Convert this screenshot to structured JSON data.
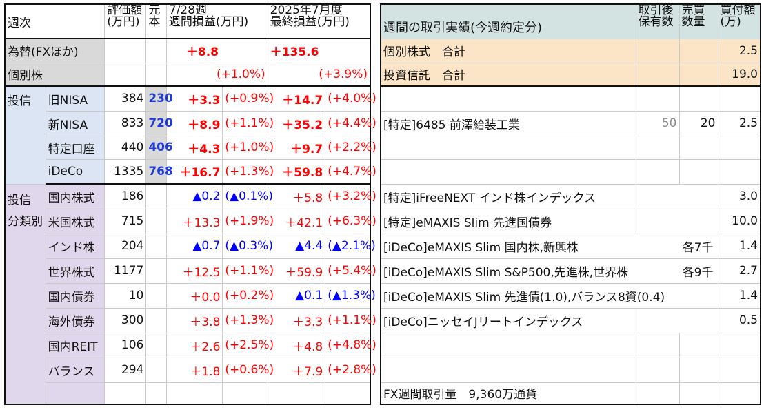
{
  "left": {
    "title": "週次",
    "headers": {
      "valuation_l1": "評価額",
      "valuation_l2": "(万円)",
      "principal_l1": "元",
      "principal_l2": "本",
      "weekly_l1": "7/28週",
      "weekly_l2": "週間損益(万円)",
      "final_l1": "2025年7月度",
      "final_l2": "最終損益(万円)"
    },
    "fx": {
      "label": "為替(FXほか)",
      "weekly": "＋8.8",
      "final": "＋135.6"
    },
    "stock": {
      "label": "個別株",
      "weekly": "(+1.0%)",
      "final": "(+3.9%)"
    },
    "trust": {
      "group_label": "投信",
      "rows": [
        {
          "label": "旧NISA",
          "value": "384",
          "principal": "230",
          "weekly": "＋3.3",
          "weekly_pct": "(+0.9%)",
          "final": "＋14.7",
          "final_pct": "(+4.0%)"
        },
        {
          "label": "新NISA",
          "value": "833",
          "principal": "720",
          "weekly": "＋8.9",
          "weekly_pct": "(+1.1%)",
          "final": "＋35.2",
          "final_pct": "(+4.4%)"
        },
        {
          "label": "特定口座",
          "value": "440",
          "principal": "406",
          "weekly": "＋4.3",
          "weekly_pct": "(+1.0%)",
          "final": "＋9.7",
          "final_pct": "(+2.2%)"
        },
        {
          "label": "iDeCo",
          "value": "1335",
          "principal": "768",
          "weekly": "＋16.7",
          "weekly_pct": "(+1.3%)",
          "final": "＋59.8",
          "final_pct": "(+4.7%)"
        }
      ]
    },
    "category": {
      "group_label_1": "投信",
      "group_label_2": "分類別",
      "rows": [
        {
          "label": "国内株式",
          "value": "186",
          "weekly": "▲0.2",
          "weekly_pct": "(▲0.1%)",
          "weekly_color": "#0000ff",
          "final": "＋5.8",
          "final_pct": "(+3.2%)",
          "final_color": "#ff0000"
        },
        {
          "label": "米国株式",
          "value": "715",
          "weekly": "＋13.3",
          "weekly_pct": "(+1.9%)",
          "weekly_color": "#ff0000",
          "final": "＋42.1",
          "final_pct": "(+6.3%)",
          "final_color": "#ff0000"
        },
        {
          "label": "インド株",
          "value": "204",
          "weekly": "▲0.7",
          "weekly_pct": "(▲0.3%)",
          "weekly_color": "#0000ff",
          "final": "▲4.4",
          "final_pct": "(▲2.1%)",
          "final_color": "#0000ff"
        },
        {
          "label": "世界株式",
          "value": "1177",
          "weekly": "＋12.5",
          "weekly_pct": "(+1.1%)",
          "weekly_color": "#ff0000",
          "final": "＋59.9",
          "final_pct": "(+5.4%)",
          "final_color": "#ff0000"
        },
        {
          "label": "国内債券",
          "value": "10",
          "weekly": "＋0.0",
          "weekly_pct": "(+0.2%)",
          "weekly_color": "#ff0000",
          "final": "▲0.1",
          "final_pct": "(▲1.3%)",
          "final_color": "#0000ff"
        },
        {
          "label": "海外債券",
          "value": "300",
          "weekly": "＋3.8",
          "weekly_pct": "(+1.3%)",
          "weekly_color": "#ff0000",
          "final": "＋3.3",
          "final_pct": "(+1.1%)",
          "final_color": "#ff0000"
        },
        {
          "label": "国内REIT",
          "value": "106",
          "weekly": "＋2.6",
          "weekly_pct": "(+2.5%)",
          "weekly_color": "#ff0000",
          "final": "＋4.8",
          "final_pct": "(+4.8%)",
          "final_color": "#ff0000"
        },
        {
          "label": "バランス",
          "value": "294",
          "weekly": "＋1.8",
          "weekly_pct": "(+0.6%)",
          "weekly_color": "#ff0000",
          "final": "＋7.9",
          "final_pct": "(+2.8%)",
          "final_color": "#ff0000"
        }
      ]
    }
  },
  "right": {
    "headers": {
      "title": "週間の取引実績(今週約定分)",
      "holdings_l1": "取引後",
      "holdings_l2": "保有数",
      "sell_l1": "売買",
      "sell_l2": "数量",
      "amount_l1": "買付額",
      "amount_l2": "(万)"
    },
    "stock_total": {
      "label": "個別株式　合計",
      "amount": "2.5"
    },
    "trust_total": {
      "label": "投資信託　合計",
      "amount": "19.0"
    },
    "stock_trade": {
      "label": "[特定]6485 前澤給装工業",
      "holdings": "50",
      "qty": "20",
      "amount": "2.5"
    },
    "trust_trades": [
      {
        "label": "[特定]iFreeNEXT インド株インデックス",
        "note": "",
        "amount": "3.0"
      },
      {
        "label": "[特定]eMAXIS Slim 先進国債券",
        "note": "",
        "amount": "10.0"
      },
      {
        "label": "[iDeCo]eMAXIS Slim 国内株,新興株",
        "note": "各7千",
        "amount": "1.4"
      },
      {
        "label": "[iDeCo]eMAXIS Slim S&P500,先進株,世界株",
        "note": "各9千",
        "amount": "2.7"
      },
      {
        "label": "[iDeCo]eMAXIS Slim 先進債(1.0),バランス8資(0.4)",
        "note": "",
        "amount": "1.4"
      },
      {
        "label": "[iDeCo]ニッセイJリートインデックス",
        "note": "",
        "amount": "0.5"
      }
    ],
    "fx_volume": "FX週間取引量　9,360万通貨"
  }
}
